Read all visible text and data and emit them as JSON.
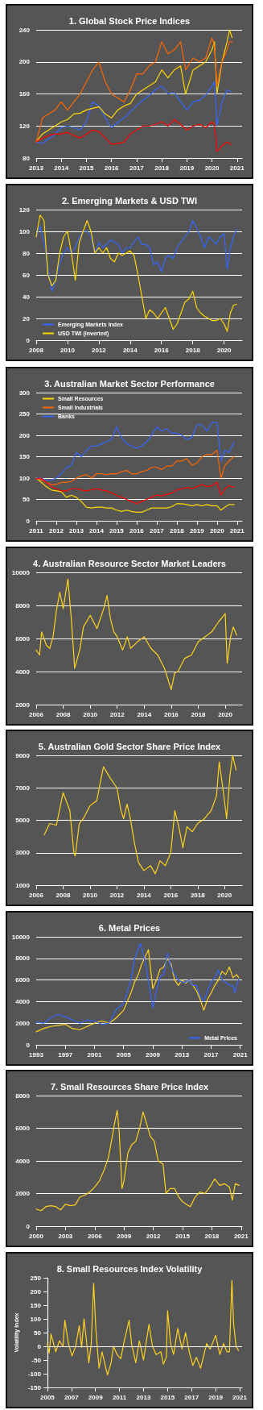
{
  "chart_data": [
    {
      "type": "line",
      "title": "1. Global Stock Price Indices",
      "xlim": [
        2013,
        2021.2
      ],
      "xticks": [
        2013,
        2014,
        2015,
        2016,
        2017,
        2018,
        2019,
        2020,
        2021
      ],
      "ylim": [
        80,
        240
      ],
      "yticks": [
        80,
        120,
        160,
        200,
        240
      ],
      "grid": "y",
      "marker": "none",
      "line_style": "solid",
      "series": [
        {
          "color": "#3366ff",
          "x": [
            2013,
            2013.25,
            2013.5,
            2013.75,
            2014,
            2014.25,
            2014.5,
            2014.75,
            2015,
            2015.25,
            2015.5,
            2015.75,
            2016,
            2016.25,
            2016.5,
            2016.75,
            2017,
            2017.25,
            2017.5,
            2017.75,
            2018,
            2018.25,
            2018.5,
            2018.75,
            2019,
            2019.25,
            2019.5,
            2019.75,
            2020,
            2020.1,
            2020.2,
            2020.4,
            2020.6,
            2020.75
          ],
          "values": [
            100,
            98,
            104,
            110,
            118,
            120,
            118,
            115,
            125,
            150,
            145,
            130,
            118,
            125,
            130,
            138,
            145,
            152,
            158,
            165,
            170,
            160,
            162,
            150,
            140,
            150,
            152,
            158,
            170,
            175,
            120,
            150,
            165,
            163
          ]
        },
        {
          "color": "#ffd700",
          "x": [
            2013,
            2013.25,
            2013.5,
            2013.75,
            2014,
            2014.25,
            2014.5,
            2014.75,
            2015,
            2015.25,
            2015.5,
            2015.75,
            2016,
            2016.25,
            2016.5,
            2016.75,
            2017,
            2017.25,
            2017.5,
            2017.75,
            2018,
            2018.25,
            2018.5,
            2018.75,
            2018.95,
            2019.25,
            2019.5,
            2019.75,
            2020,
            2020.1,
            2020.2,
            2020.4,
            2020.6,
            2020.7,
            2020.8
          ],
          "values": [
            100,
            110,
            115,
            120,
            125,
            128,
            135,
            136,
            140,
            142,
            144,
            135,
            130,
            140,
            145,
            148,
            160,
            165,
            170,
            175,
            190,
            180,
            190,
            195,
            160,
            190,
            195,
            200,
            215,
            225,
            160,
            200,
            225,
            240,
            230
          ]
        },
        {
          "color": "#ff6600",
          "x": [
            2013,
            2013.25,
            2013.5,
            2013.75,
            2014,
            2014.25,
            2014.5,
            2014.75,
            2015,
            2015.25,
            2015.5,
            2015.75,
            2016,
            2016.25,
            2016.5,
            2016.75,
            2017,
            2017.25,
            2017.5,
            2017.75,
            2018,
            2018.25,
            2018.5,
            2018.75,
            2018.95,
            2019.25,
            2019.5,
            2019.75,
            2020,
            2020.1,
            2020.2,
            2020.4,
            2020.6,
            2020.7,
            2020.8
          ],
          "values": [
            100,
            130,
            135,
            140,
            150,
            140,
            150,
            160,
            175,
            190,
            200,
            175,
            160,
            155,
            150,
            165,
            185,
            185,
            195,
            200,
            225,
            210,
            215,
            225,
            190,
            205,
            200,
            205,
            230,
            220,
            170,
            200,
            215,
            225,
            225
          ]
        },
        {
          "color": "#ff0000",
          "x": [
            2013,
            2013.25,
            2013.5,
            2013.75,
            2014,
            2014.25,
            2014.5,
            2014.75,
            2015,
            2015.25,
            2015.5,
            2015.75,
            2016,
            2016.25,
            2016.5,
            2016.75,
            2017,
            2017.25,
            2017.5,
            2017.75,
            2018,
            2018.25,
            2018.5,
            2018.75,
            2019,
            2019.25,
            2019.5,
            2019.75,
            2020,
            2020.1,
            2020.2,
            2020.4,
            2020.6,
            2020.75
          ],
          "values": [
            100,
            105,
            108,
            110,
            110,
            112,
            108,
            105,
            110,
            115,
            113,
            105,
            97,
            98,
            100,
            110,
            115,
            120,
            120,
            122,
            125,
            120,
            128,
            122,
            115,
            120,
            122,
            118,
            125,
            122,
            88,
            95,
            100,
            97
          ]
        }
      ]
    },
    {
      "type": "line",
      "title": "2. Emerging Markets & USD TWI",
      "xlim": [
        2008,
        2021.15
      ],
      "xticks": [
        2008,
        2010,
        2012,
        2014,
        2016,
        2018,
        2020
      ],
      "ylim": [
        0,
        120
      ],
      "yticks": [
        0,
        20,
        40,
        60,
        80,
        100,
        120
      ],
      "grid": "y",
      "legend": "bottom left",
      "marker": "none",
      "line_style": "solid",
      "x": [
        2008,
        2008.25,
        2008.5,
        2008.75,
        2009,
        2009.25,
        2009.5,
        2009.75,
        2010,
        2010.25,
        2010.5,
        2010.75,
        2011,
        2011.25,
        2011.5,
        2011.75,
        2012,
        2012.25,
        2012.5,
        2012.75,
        2013,
        2013.25,
        2013.5,
        2013.75,
        2014,
        2014.25,
        2014.5,
        2014.75,
        2015,
        2015.25,
        2015.5,
        2015.75,
        2016,
        2016.25,
        2016.5,
        2016.75,
        2017,
        2017.25,
        2017.5,
        2017.75,
        2018,
        2018.25,
        2018.5,
        2018.75,
        2019,
        2019.25,
        2019.5,
        2019.75,
        2020,
        2020.2,
        2020.4,
        2020.6,
        2020.8
      ],
      "series": [
        {
          "name": "Emerging Markets Index",
          "color": "#3366ff",
          "values": [
            95,
            105,
            90,
            66,
            45,
            55,
            70,
            80,
            85,
            80,
            85,
            95,
            100,
            100,
            95,
            80,
            90,
            85,
            88,
            92,
            90,
            88,
            80,
            85,
            85,
            90,
            95,
            88,
            88,
            85,
            69,
            72,
            63,
            75,
            78,
            75,
            85,
            90,
            95,
            100,
            110,
            103,
            95,
            85,
            95,
            92,
            88,
            95,
            98,
            65,
            85,
            95,
            102
          ]
        },
        {
          "name": "USD TWI (inverted)",
          "color": "#ffd700",
          "values": [
            95,
            115,
            110,
            60,
            50,
            55,
            80,
            95,
            100,
            80,
            55,
            90,
            100,
            110,
            100,
            80,
            85,
            80,
            85,
            75,
            72,
            80,
            78,
            80,
            82,
            78,
            60,
            40,
            20,
            28,
            25,
            20,
            25,
            30,
            20,
            10,
            15,
            25,
            35,
            38,
            45,
            30,
            25,
            22,
            20,
            18,
            18,
            20,
            15,
            8,
            25,
            32,
            33
          ]
        }
      ]
    },
    {
      "type": "line",
      "title": "3. Australian Market Sector Performance",
      "xlim": [
        2011,
        2021.25
      ],
      "xticks": [
        2011,
        2012,
        2013,
        2014,
        2015,
        2016,
        2017,
        2018,
        2019,
        2020,
        2021
      ],
      "ylim": [
        0,
        300
      ],
      "yticks": [
        0,
        50,
        100,
        150,
        200,
        250,
        300
      ],
      "grid": "y",
      "legend": "top left",
      "marker": "none",
      "line_style": "solid",
      "x": [
        2011,
        2011.25,
        2011.5,
        2011.75,
        2012,
        2012.25,
        2012.5,
        2012.75,
        2013,
        2013.25,
        2013.5,
        2013.75,
        2014,
        2014.25,
        2014.5,
        2014.75,
        2015,
        2015.25,
        2015.5,
        2015.75,
        2016,
        2016.25,
        2016.5,
        2016.75,
        2017,
        2017.25,
        2017.5,
        2017.75,
        2018,
        2018.25,
        2018.5,
        2018.75,
        2019,
        2019.25,
        2019.5,
        2019.75,
        2020,
        2020.2,
        2020.4,
        2020.6,
        2020.85
      ],
      "series": [
        {
          "name": "Small Resources",
          "color": "#ffd700",
          "values": [
            100,
            90,
            80,
            72,
            70,
            68,
            55,
            60,
            55,
            45,
            32,
            30,
            32,
            32,
            30,
            30,
            25,
            22,
            25,
            22,
            20,
            20,
            25,
            30,
            30,
            30,
            30,
            33,
            40,
            40,
            38,
            35,
            38,
            35,
            38,
            35,
            35,
            25,
            32,
            38,
            38
          ]
        },
        {
          "name": "Small Industrials",
          "color": "#ff6600",
          "values": [
            100,
            95,
            90,
            85,
            85,
            90,
            90,
            92,
            100,
            105,
            108,
            100,
            110,
            110,
            108,
            110,
            110,
            115,
            118,
            110,
            110,
            115,
            118,
            125,
            125,
            120,
            128,
            128,
            140,
            140,
            145,
            130,
            135,
            150,
            155,
            155,
            165,
            100,
            130,
            140,
            150
          ]
        },
        {
          "name": "Banks",
          "color": "#3366ff",
          "values": [
            100,
            100,
            95,
            95,
            100,
            110,
            125,
            130,
            160,
            150,
            165,
            175,
            175,
            180,
            185,
            190,
            220,
            195,
            180,
            175,
            170,
            175,
            185,
            200,
            220,
            210,
            215,
            205,
            205,
            200,
            190,
            195,
            225,
            225,
            210,
            230,
            230,
            140,
            165,
            160,
            185
          ]
        },
        {
          "color": "#ff0000",
          "values": [
            98,
            100,
            90,
            80,
            75,
            70,
            70,
            75,
            75,
            72,
            70,
            73,
            75,
            72,
            70,
            65,
            60,
            55,
            50,
            45,
            40,
            45,
            50,
            55,
            60,
            58,
            62,
            65,
            72,
            75,
            78,
            75,
            80,
            85,
            80,
            82,
            90,
            60,
            75,
            82,
            78
          ]
        }
      ]
    },
    {
      "type": "line",
      "title": "4. Australian Resource Sector Market Leaders",
      "xlim": [
        2006,
        2021.25
      ],
      "xticks": [
        2006,
        2008,
        2010,
        2012,
        2014,
        2016,
        2018,
        2020
      ],
      "ylim": [
        2000,
        10000
      ],
      "yticks": [
        2000,
        4000,
        6000,
        8000,
        10000
      ],
      "grid": "y",
      "marker": "none",
      "line_style": "solid",
      "series": [
        {
          "color": "#ffd21f",
          "x": [
            2006,
            2006.25,
            2006.4,
            2006.75,
            2007,
            2007.25,
            2007.5,
            2007.75,
            2008,
            2008.35,
            2008.6,
            2008.85,
            2009.25,
            2009.5,
            2010,
            2010.25,
            2010.5,
            2011,
            2011.25,
            2011.5,
            2011.75,
            2012,
            2012.4,
            2012.75,
            2013,
            2013.5,
            2014,
            2014.5,
            2015,
            2015.5,
            2016,
            2016.25,
            2016.5,
            2017,
            2017.5,
            2018,
            2018.5,
            2019,
            2019.5,
            2020,
            2020.15,
            2020.4,
            2020.6,
            2020.85
          ],
          "values": [
            5300,
            5000,
            6400,
            5600,
            5400,
            6100,
            7700,
            8800,
            7800,
            9600,
            7200,
            4200,
            5400,
            6700,
            7400,
            7000,
            6600,
            7800,
            8600,
            7200,
            6400,
            6100,
            5300,
            6100,
            5400,
            5800,
            6100,
            5400,
            5000,
            4200,
            2900,
            3900,
            4000,
            4800,
            5000,
            5800,
            6100,
            6400,
            7000,
            7500,
            4500,
            6100,
            6700,
            6200
          ]
        }
      ]
    },
    {
      "type": "line",
      "title": "5. Australian Gold Sector Share Price Index",
      "xlim": [
        2006,
        2021.3
      ],
      "xticks": [
        2006,
        2008,
        2010,
        2012,
        2014,
        2016,
        2018,
        2020
      ],
      "ylim": [
        1000,
        9000
      ],
      "yticks": [
        1000,
        3000,
        5000,
        7000,
        9000
      ],
      "grid": "y",
      "marker": "none",
      "line_style": "solid",
      "series": [
        {
          "color": "#ffd21f",
          "x": [
            2006.6,
            2007,
            2007.5,
            2008,
            2008.5,
            2008.8,
            2008.9,
            2009.2,
            2009.5,
            2010,
            2010.5,
            2010.8,
            2011,
            2011.5,
            2012,
            2012.3,
            2012.5,
            2012.75,
            2013,
            2013.3,
            2013.6,
            2014,
            2014.5,
            2014.85,
            2015.2,
            2015.6,
            2016,
            2016.3,
            2016.6,
            2016.9,
            2017.2,
            2017.6,
            2018,
            2018.5,
            2019,
            2019.4,
            2019.6,
            2019.9,
            2020.15,
            2020.4,
            2020.6,
            2020.85
          ],
          "values": [
            4100,
            4800,
            4700,
            6700,
            5600,
            3000,
            2800,
            4800,
            5100,
            5900,
            6200,
            7500,
            8300,
            7600,
            7000,
            5600,
            5100,
            6000,
            5100,
            3600,
            2400,
            1900,
            2200,
            1700,
            2500,
            2200,
            3000,
            5600,
            4600,
            3300,
            4600,
            4300,
            4800,
            5100,
            5600,
            6500,
            8600,
            6800,
            5100,
            7800,
            9000,
            8100
          ]
        }
      ]
    },
    {
      "type": "line",
      "title": "6. Metal Prices",
      "xlim": [
        1993,
        2021.25
      ],
      "xticks": [
        1993,
        1997,
        2001,
        2005,
        2009,
        2013,
        2017,
        2021
      ],
      "ylim": [
        0,
        10000
      ],
      "yticks": [
        0,
        2000,
        4000,
        6000,
        8000,
        10000
      ],
      "grid": "y",
      "legend": "bottom right",
      "marker": "none",
      "line_style": "solid",
      "series": [
        {
          "color": "#ffd21f",
          "x": [
            1993,
            1994,
            1995,
            1996,
            1997,
            1998,
            1999,
            2000,
            2001,
            2002,
            2003,
            2004,
            2005,
            2006,
            2006.5,
            2007,
            2007.5,
            2008.4,
            2009,
            2009.5,
            2010,
            2010.5,
            2011,
            2011.5,
            2012,
            2012.5,
            2013,
            2013.5,
            2014,
            2014.5,
            2015,
            2015.5,
            2016,
            2016.5,
            2017,
            2017.5,
            2018,
            2018.5,
            2019,
            2019.5,
            2020,
            2020.5,
            2020.8
          ],
          "values": [
            1200,
            1500,
            1700,
            1800,
            1900,
            1500,
            1400,
            1700,
            2000,
            2200,
            2000,
            2500,
            3200,
            4800,
            5800,
            6500,
            7500,
            8800,
            5200,
            6000,
            7000,
            7200,
            8000,
            7500,
            6000,
            5500,
            6000,
            5700,
            6000,
            5500,
            5000,
            4200,
            3200,
            4200,
            4800,
            5500,
            6000,
            6800,
            6500,
            7200,
            6200,
            6500,
            6200
          ]
        },
        {
          "name": "Metal Prices",
          "color": "#3366ff",
          "x": [
            1993,
            1994,
            1995,
            1996,
            1997,
            1998,
            1999,
            2000,
            2001,
            2002,
            2003,
            2004,
            2005,
            2006,
            2006.5,
            2007.3,
            2008,
            2009,
            2009.5,
            2010,
            2010.5,
            2011,
            2011.5,
            2012,
            2012.5,
            2013,
            2013.5,
            2014,
            2014.5,
            2015,
            2015.5,
            2016,
            2016.5,
            2017,
            2017.5,
            2018,
            2018.5,
            2019,
            2019.5,
            2020,
            2020.2,
            2020.8
          ],
          "values": [
            2100,
            2000,
            2500,
            2800,
            2600,
            2300,
            2000,
            2300,
            2200,
            1900,
            2000,
            3300,
            3800,
            6000,
            8000,
            9400,
            7500,
            3400,
            5000,
            6300,
            6500,
            8500,
            7200,
            6500,
            6000,
            5800,
            5800,
            6000,
            5500,
            5500,
            4500,
            4000,
            5000,
            5800,
            6200,
            6900,
            6000,
            5800,
            5500,
            5500,
            4800,
            6100
          ]
        }
      ]
    },
    {
      "type": "line",
      "title": "7. Small Resources Share Price Index",
      "xlim": [
        2000,
        2021.1
      ],
      "xticks": [
        2000,
        2003,
        2006,
        2009,
        2012,
        2015,
        2018,
        2021
      ],
      "ylim": [
        0,
        8000
      ],
      "yticks": [
        0,
        2000,
        4000,
        6000,
        8000
      ],
      "grid": "y",
      "marker": "none",
      "line_style": "solid",
      "series": [
        {
          "color": "#ffd21f",
          "x": [
            2000,
            2000.5,
            2001,
            2001.5,
            2002,
            2002.5,
            2003,
            2003.5,
            2004,
            2004.5,
            2005,
            2005.5,
            2006,
            2006.5,
            2007,
            2007.4,
            2007.8,
            2008,
            2008.3,
            2008.5,
            2008.8,
            2009,
            2009.4,
            2009.8,
            2010.2,
            2010.6,
            2010.95,
            2011.3,
            2011.7,
            2012.1,
            2012.5,
            2013,
            2013.3,
            2013.7,
            2014.2,
            2014.6,
            2015,
            2015.5,
            2015.8,
            2016.3,
            2016.8,
            2017.3,
            2017.8,
            2018.3,
            2018.8,
            2019.3,
            2019.8,
            2020.1,
            2020.4,
            2020.8
          ],
          "values": [
            1050,
            950,
            1200,
            1250,
            1200,
            1000,
            1350,
            1250,
            1300,
            1800,
            1900,
            2100,
            2400,
            2800,
            3500,
            4200,
            5500,
            6200,
            7100,
            5800,
            2300,
            2800,
            4500,
            5000,
            5200,
            6000,
            7000,
            6300,
            5500,
            5200,
            4000,
            3800,
            2000,
            2300,
            2300,
            1800,
            1500,
            1300,
            1200,
            1800,
            2100,
            2000,
            2400,
            2900,
            2500,
            2600,
            2400,
            1600,
            2600,
            2500
          ]
        }
      ]
    },
    {
      "type": "line",
      "title": "8. Small Resources Index Volatility",
      "ylabel": "Volatility Index",
      "xlim": [
        2005,
        2021.2
      ],
      "xticks": [
        2005,
        2007,
        2009,
        2011,
        2013,
        2015,
        2017,
        2019,
        2021
      ],
      "ylim": [
        -150,
        250
      ],
      "yticks": [
        -150,
        -100,
        -50,
        0,
        50,
        100,
        150,
        200,
        250
      ],
      "grid": false,
      "marker": "none",
      "line_style": "solid",
      "ref_lines": [
        {
          "axis": "y",
          "value": 0,
          "color": "#ffffff"
        }
      ],
      "series": [
        {
          "color": "#ffd21f",
          "x": [
            2005,
            2005.15,
            2005.3,
            2005.7,
            2006,
            2006.3,
            2006.45,
            2006.75,
            2007.05,
            2007.35,
            2007.65,
            2007.85,
            2008.05,
            2008.45,
            2008.65,
            2008.85,
            2009.05,
            2009.3,
            2009.55,
            2010,
            2010.3,
            2010.5,
            2010.8,
            2011.1,
            2011.4,
            2011.8,
            2012,
            2012.35,
            2012.65,
            2013,
            2013.45,
            2013.75,
            2014.05,
            2014.45,
            2014.65,
            2014.9,
            2015,
            2015.25,
            2015.5,
            2015.85,
            2016.2,
            2016.5,
            2016.8,
            2017.1,
            2017.4,
            2017.75,
            2018.25,
            2018.55,
            2019,
            2019.35,
            2019.65,
            2019.95,
            2020.15,
            2020.35,
            2020.5,
            2020.7,
            2020.9
          ],
          "values": [
            10,
            -25,
            45,
            -20,
            20,
            0,
            95,
            10,
            -35,
            0,
            75,
            -5,
            100,
            -60,
            10,
            230,
            50,
            -80,
            -20,
            -105,
            -60,
            0,
            -30,
            -45,
            20,
            95,
            10,
            -60,
            20,
            -50,
            80,
            0,
            -30,
            -20,
            -65,
            -40,
            130,
            10,
            -30,
            65,
            -10,
            50,
            -20,
            -70,
            -40,
            -80,
            10,
            -10,
            40,
            -30,
            10,
            -20,
            -20,
            240,
            80,
            0,
            -15
          ]
        }
      ]
    }
  ]
}
